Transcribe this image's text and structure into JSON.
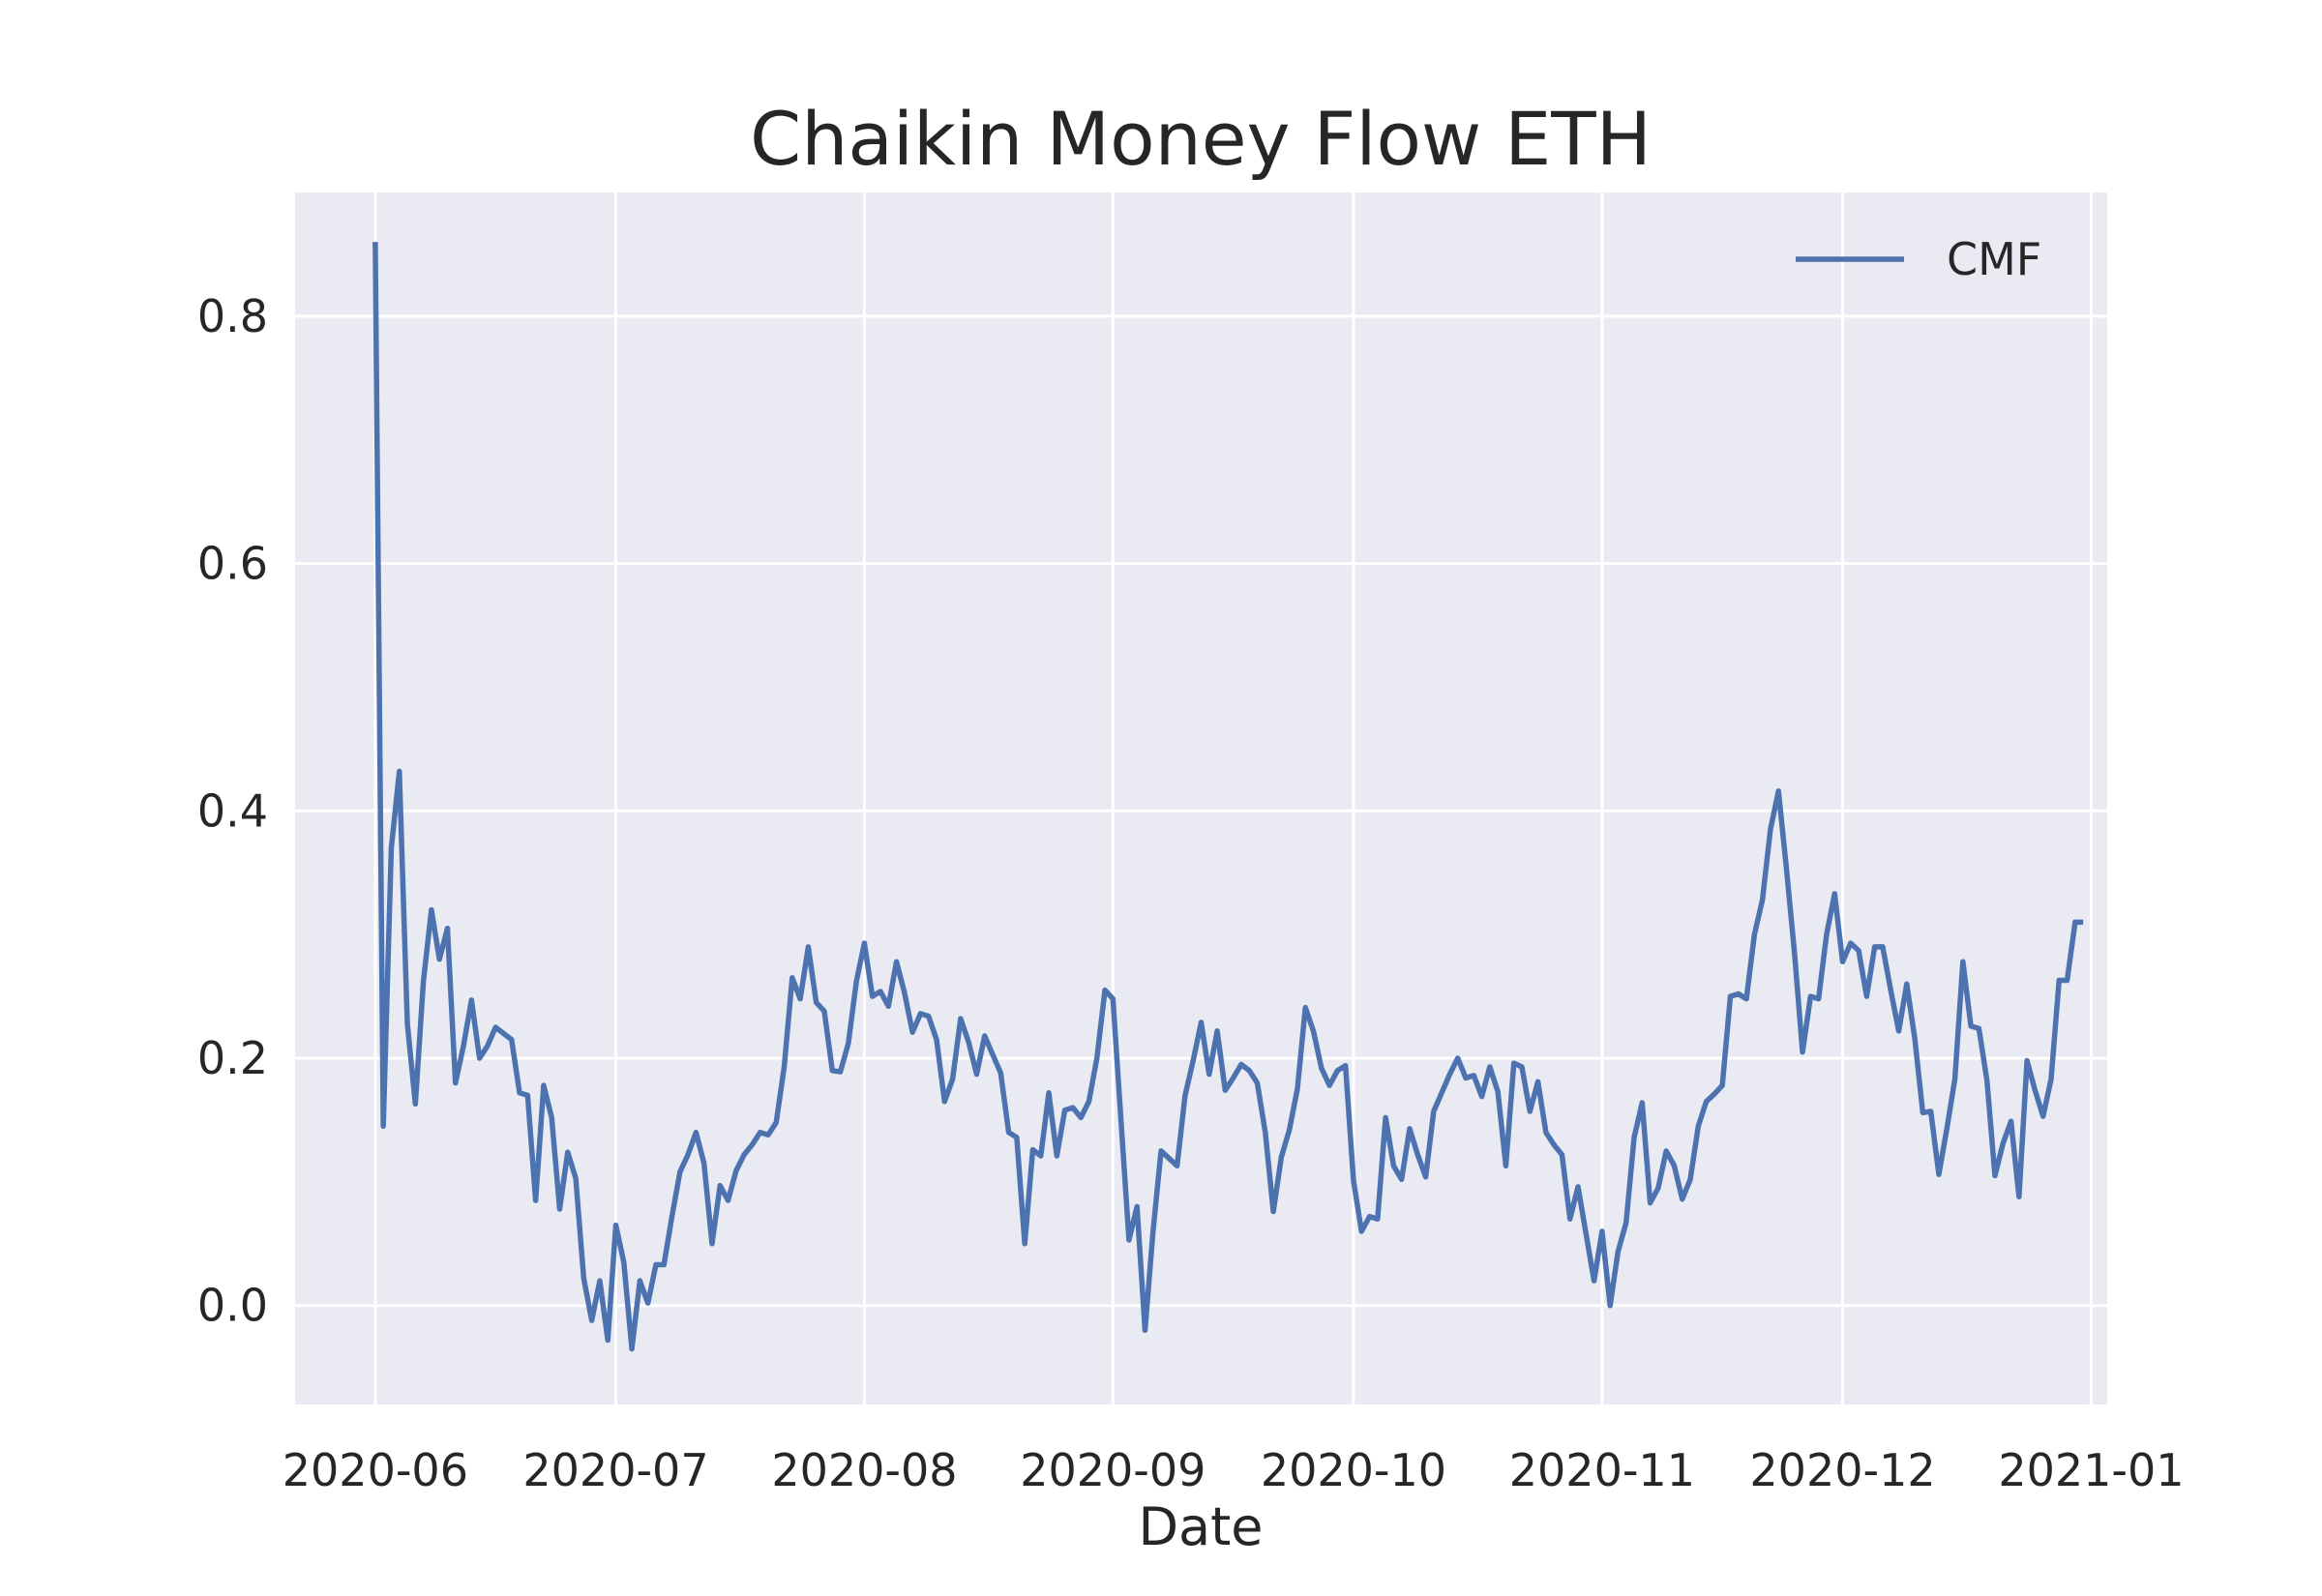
{
  "chart_data": {
    "type": "line",
    "title": "Chaikin Money Flow ETH",
    "xlabel": "Date",
    "ylabel": "",
    "x_range": [
      "2020-05-22",
      "2021-01-03"
    ],
    "ylim": [
      -0.08,
      0.9
    ],
    "x_ticks": [
      "2020-06",
      "2020-07",
      "2020-08",
      "2020-09",
      "2020-10",
      "2020-11",
      "2020-12",
      "2021-01"
    ],
    "x_tick_dates": [
      "2020-06-01",
      "2020-07-01",
      "2020-08-01",
      "2020-09-01",
      "2020-10-01",
      "2020-11-01",
      "2020-12-01",
      "2021-01-01"
    ],
    "y_ticks": [
      0.0,
      0.2,
      0.4,
      0.6,
      0.8
    ],
    "y_tick_labels": [
      "0.0",
      "0.2",
      "0.4",
      "0.6",
      "0.8"
    ],
    "grid": true,
    "legend": "top-right",
    "colors": {
      "background": "#eaeaf2",
      "grid": "#ffffff",
      "line": "#4c72b0",
      "text": "#262626"
    },
    "start_date": "2020-06-01",
    "series": [
      {
        "name": "CMF",
        "values": [
          0.86,
          0.145,
          0.37,
          0.432,
          0.228,
          0.163,
          0.262,
          0.32,
          0.28,
          0.305,
          0.18,
          0.21,
          0.247,
          0.2,
          0.21,
          0.225,
          0.22,
          0.215,
          0.172,
          0.17,
          0.085,
          0.178,
          0.152,
          0.078,
          0.124,
          0.103,
          0.022,
          -0.012,
          0.02,
          -0.028,
          0.065,
          0.035,
          -0.035,
          0.02,
          0.002,
          0.033,
          0.033,
          0.072,
          0.108,
          0.122,
          0.14,
          0.115,
          0.05,
          0.097,
          0.085,
          0.109,
          0.122,
          0.13,
          0.14,
          0.138,
          0.148,
          0.193,
          0.265,
          0.248,
          0.29,
          0.245,
          0.238,
          0.19,
          0.189,
          0.212,
          0.262,
          0.293,
          0.25,
          0.254,
          0.242,
          0.278,
          0.253,
          0.221,
          0.236,
          0.234,
          0.215,
          0.165,
          0.183,
          0.232,
          0.213,
          0.187,
          0.218,
          0.203,
          0.188,
          0.14,
          0.136,
          0.05,
          0.126,
          0.121,
          0.172,
          0.121,
          0.158,
          0.16,
          0.152,
          0.165,
          0.2,
          0.255,
          0.248,
          0.15,
          0.053,
          0.08,
          -0.02,
          0.06,
          0.125,
          0.119,
          0.113,
          0.17,
          0.198,
          0.229,
          0.187,
          0.222,
          0.174,
          0.184,
          0.195,
          0.19,
          0.18,
          0.14,
          0.076,
          0.12,
          0.142,
          0.175,
          0.241,
          0.222,
          0.192,
          0.178,
          0.19,
          0.194,
          0.101,
          0.06,
          0.072,
          0.07,
          0.152,
          0.113,
          0.102,
          0.143,
          0.122,
          0.104,
          0.157,
          0.172,
          0.187,
          0.2,
          0.184,
          0.186,
          0.169,
          0.193,
          0.173,
          0.113,
          0.196,
          0.193,
          0.157,
          0.181,
          0.14,
          0.13,
          0.122,
          0.07,
          0.096,
          0.058,
          0.02,
          0.06,
          0.0,
          0.044,
          0.067,
          0.136,
          0.164,
          0.083,
          0.095,
          0.125,
          0.113,
          0.086,
          0.102,
          0.145,
          0.165,
          0.171,
          0.178,
          0.25,
          0.252,
          0.248,
          0.3,
          0.328,
          0.385,
          0.416,
          0.353,
          0.285,
          0.205,
          0.25,
          0.248,
          0.3,
          0.333,
          0.278,
          0.293,
          0.287,
          0.25,
          0.29,
          0.29,
          0.255,
          0.222,
          0.26,
          0.216,
          0.156,
          0.157,
          0.106,
          0.143,
          0.183,
          0.278,
          0.226,
          0.224,
          0.182,
          0.105,
          0.131,
          0.149,
          0.088,
          0.198,
          0.174,
          0.153,
          0.183,
          0.263,
          0.263,
          0.31,
          0.31
        ]
      }
    ]
  }
}
